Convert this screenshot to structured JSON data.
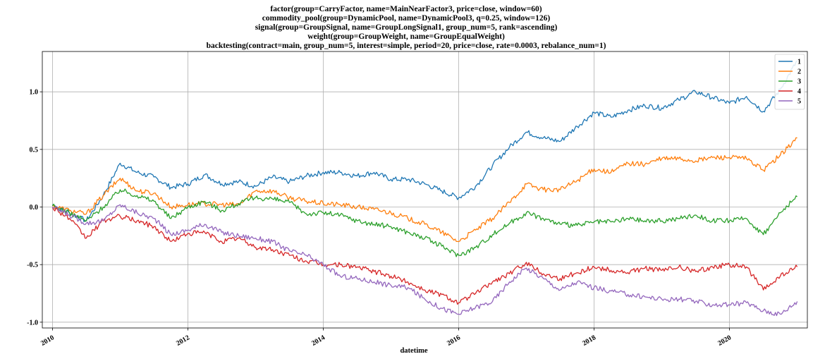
{
  "chart_data": {
    "type": "line",
    "title_lines": [
      "factor(group=CarryFactor, name=MainNearFactor3, price=close, window=60)",
      "commodity_pool(group=DynamicPool, name=DynamicPool3, q=0.25, window=126)",
      "signal(group=GroupSignal, name=GroupLongSignal1, group_num=5, rank=ascending)",
      "weight(group=GroupWeight, name=GroupEqualWeight)",
      "backtesting(contract=main, group_num=5, interest=simple, period=20, price=close, rate=0.0003, rebalance_num=1)"
    ],
    "xlabel": "datetime",
    "ylabel": "",
    "xlim": [
      2009.85,
      2021.15
    ],
    "ylim": [
      -1.05,
      1.35
    ],
    "x_ticks": [
      2010,
      2012,
      2014,
      2016,
      2018,
      2020
    ],
    "x_tick_labels": [
      "2010",
      "2012",
      "2014",
      "2016",
      "2018",
      "2020"
    ],
    "y_ticks": [
      -1.0,
      -0.5,
      0.0,
      0.5,
      1.0
    ],
    "y_tick_labels": [
      "-1.0",
      "-0.5",
      "0.0",
      "0.5",
      "1.0"
    ],
    "grid": true,
    "legend_position": "top-right",
    "series": [
      {
        "name": "1",
        "color": "#1f77b4",
        "points": [
          [
            2010.0,
            0.02
          ],
          [
            2010.25,
            -0.05
          ],
          [
            2010.5,
            -0.12
          ],
          [
            2010.75,
            0.1
          ],
          [
            2011.0,
            0.38
          ],
          [
            2011.25,
            0.3
          ],
          [
            2011.5,
            0.26
          ],
          [
            2011.75,
            0.17
          ],
          [
            2012.0,
            0.2
          ],
          [
            2012.25,
            0.28
          ],
          [
            2012.5,
            0.2
          ],
          [
            2012.75,
            0.22
          ],
          [
            2013.0,
            0.18
          ],
          [
            2013.25,
            0.26
          ],
          [
            2013.5,
            0.22
          ],
          [
            2013.75,
            0.27
          ],
          [
            2014.0,
            0.3
          ],
          [
            2014.25,
            0.3
          ],
          [
            2014.5,
            0.27
          ],
          [
            2014.75,
            0.3
          ],
          [
            2015.0,
            0.24
          ],
          [
            2015.25,
            0.24
          ],
          [
            2015.5,
            0.2
          ],
          [
            2015.75,
            0.14
          ],
          [
            2016.0,
            0.08
          ],
          [
            2016.25,
            0.18
          ],
          [
            2016.5,
            0.36
          ],
          [
            2016.75,
            0.52
          ],
          [
            2017.0,
            0.65
          ],
          [
            2017.25,
            0.6
          ],
          [
            2017.5,
            0.57
          ],
          [
            2017.75,
            0.7
          ],
          [
            2018.0,
            0.82
          ],
          [
            2018.25,
            0.78
          ],
          [
            2018.5,
            0.84
          ],
          [
            2018.75,
            0.88
          ],
          [
            2019.0,
            0.86
          ],
          [
            2019.25,
            0.93
          ],
          [
            2019.5,
            1.0
          ],
          [
            2019.75,
            0.95
          ],
          [
            2020.0,
            0.9
          ],
          [
            2020.25,
            0.96
          ],
          [
            2020.5,
            0.83
          ],
          [
            2020.75,
            1.02
          ],
          [
            2021.0,
            1.27
          ]
        ]
      },
      {
        "name": "2",
        "color": "#ff7f0e",
        "points": [
          [
            2010.0,
            0.01
          ],
          [
            2010.25,
            -0.03
          ],
          [
            2010.5,
            -0.06
          ],
          [
            2010.75,
            0.1
          ],
          [
            2011.0,
            0.25
          ],
          [
            2011.25,
            0.14
          ],
          [
            2011.5,
            0.12
          ],
          [
            2011.75,
            0.0
          ],
          [
            2012.0,
            0.02
          ],
          [
            2012.25,
            0.03
          ],
          [
            2012.5,
            0.02
          ],
          [
            2012.75,
            0.02
          ],
          [
            2013.0,
            0.14
          ],
          [
            2013.25,
            0.14
          ],
          [
            2013.5,
            0.08
          ],
          [
            2013.75,
            0.05
          ],
          [
            2014.0,
            0.03
          ],
          [
            2014.25,
            0.02
          ],
          [
            2014.5,
            0.0
          ],
          [
            2014.75,
            -0.02
          ],
          [
            2015.0,
            -0.05
          ],
          [
            2015.25,
            -0.1
          ],
          [
            2015.5,
            -0.15
          ],
          [
            2015.75,
            -0.22
          ],
          [
            2016.0,
            -0.3
          ],
          [
            2016.25,
            -0.2
          ],
          [
            2016.5,
            -0.1
          ],
          [
            2016.75,
            0.04
          ],
          [
            2017.0,
            0.2
          ],
          [
            2017.25,
            0.15
          ],
          [
            2017.5,
            0.15
          ],
          [
            2017.75,
            0.23
          ],
          [
            2018.0,
            0.33
          ],
          [
            2018.25,
            0.3
          ],
          [
            2018.5,
            0.38
          ],
          [
            2018.75,
            0.37
          ],
          [
            2019.0,
            0.42
          ],
          [
            2019.25,
            0.42
          ],
          [
            2019.5,
            0.4
          ],
          [
            2019.75,
            0.43
          ],
          [
            2020.0,
            0.43
          ],
          [
            2020.25,
            0.42
          ],
          [
            2020.5,
            0.32
          ],
          [
            2020.75,
            0.45
          ],
          [
            2021.0,
            0.6
          ]
        ]
      },
      {
        "name": "3",
        "color": "#2ca02c",
        "points": [
          [
            2010.0,
            0.01
          ],
          [
            2010.25,
            -0.05
          ],
          [
            2010.5,
            -0.12
          ],
          [
            2010.75,
            0.0
          ],
          [
            2011.0,
            0.15
          ],
          [
            2011.25,
            0.1
          ],
          [
            2011.5,
            0.05
          ],
          [
            2011.75,
            -0.1
          ],
          [
            2012.0,
            0.0
          ],
          [
            2012.25,
            0.05
          ],
          [
            2012.5,
            -0.03
          ],
          [
            2012.75,
            0.03
          ],
          [
            2013.0,
            0.08
          ],
          [
            2013.25,
            0.07
          ],
          [
            2013.5,
            0.04
          ],
          [
            2013.75,
            -0.06
          ],
          [
            2014.0,
            -0.05
          ],
          [
            2014.25,
            -0.07
          ],
          [
            2014.5,
            -0.12
          ],
          [
            2014.75,
            -0.15
          ],
          [
            2015.0,
            -0.17
          ],
          [
            2015.25,
            -0.22
          ],
          [
            2015.5,
            -0.27
          ],
          [
            2015.75,
            -0.34
          ],
          [
            2016.0,
            -0.42
          ],
          [
            2016.25,
            -0.35
          ],
          [
            2016.5,
            -0.24
          ],
          [
            2016.75,
            -0.14
          ],
          [
            2017.0,
            -0.05
          ],
          [
            2017.25,
            -0.1
          ],
          [
            2017.5,
            -0.15
          ],
          [
            2017.75,
            -0.16
          ],
          [
            2018.0,
            -0.13
          ],
          [
            2018.25,
            -0.13
          ],
          [
            2018.5,
            -0.1
          ],
          [
            2018.75,
            -0.12
          ],
          [
            2019.0,
            -0.12
          ],
          [
            2019.25,
            -0.1
          ],
          [
            2019.5,
            -0.07
          ],
          [
            2019.75,
            -0.12
          ],
          [
            2020.0,
            -0.12
          ],
          [
            2020.25,
            -0.1
          ],
          [
            2020.5,
            -0.24
          ],
          [
            2020.75,
            -0.05
          ],
          [
            2021.0,
            0.09
          ]
        ]
      },
      {
        "name": "4",
        "color": "#d62728",
        "points": [
          [
            2010.0,
            0.0
          ],
          [
            2010.25,
            -0.1
          ],
          [
            2010.5,
            -0.27
          ],
          [
            2010.75,
            -0.12
          ],
          [
            2011.0,
            -0.08
          ],
          [
            2011.25,
            -0.12
          ],
          [
            2011.5,
            -0.17
          ],
          [
            2011.75,
            -0.3
          ],
          [
            2012.0,
            -0.23
          ],
          [
            2012.25,
            -0.22
          ],
          [
            2012.5,
            -0.3
          ],
          [
            2012.75,
            -0.27
          ],
          [
            2013.0,
            -0.35
          ],
          [
            2013.25,
            -0.37
          ],
          [
            2013.5,
            -0.42
          ],
          [
            2013.75,
            -0.47
          ],
          [
            2014.0,
            -0.5
          ],
          [
            2014.25,
            -0.5
          ],
          [
            2014.5,
            -0.52
          ],
          [
            2014.75,
            -0.56
          ],
          [
            2015.0,
            -0.6
          ],
          [
            2015.25,
            -0.65
          ],
          [
            2015.5,
            -0.72
          ],
          [
            2015.75,
            -0.76
          ],
          [
            2016.0,
            -0.83
          ],
          [
            2016.25,
            -0.75
          ],
          [
            2016.5,
            -0.65
          ],
          [
            2016.75,
            -0.58
          ],
          [
            2017.0,
            -0.48
          ],
          [
            2017.25,
            -0.58
          ],
          [
            2017.5,
            -0.62
          ],
          [
            2017.75,
            -0.57
          ],
          [
            2018.0,
            -0.52
          ],
          [
            2018.25,
            -0.55
          ],
          [
            2018.5,
            -0.57
          ],
          [
            2018.75,
            -0.53
          ],
          [
            2019.0,
            -0.55
          ],
          [
            2019.25,
            -0.52
          ],
          [
            2019.5,
            -0.56
          ],
          [
            2019.75,
            -0.52
          ],
          [
            2020.0,
            -0.5
          ],
          [
            2020.25,
            -0.52
          ],
          [
            2020.5,
            -0.72
          ],
          [
            2020.75,
            -0.6
          ],
          [
            2021.0,
            -0.52
          ]
        ]
      },
      {
        "name": "5",
        "color": "#9467bd",
        "points": [
          [
            2010.0,
            0.0
          ],
          [
            2010.25,
            -0.07
          ],
          [
            2010.5,
            -0.14
          ],
          [
            2010.75,
            -0.12
          ],
          [
            2011.0,
            0.02
          ],
          [
            2011.25,
            -0.05
          ],
          [
            2011.5,
            -0.1
          ],
          [
            2011.75,
            -0.24
          ],
          [
            2012.0,
            -0.2
          ],
          [
            2012.25,
            -0.15
          ],
          [
            2012.5,
            -0.22
          ],
          [
            2012.75,
            -0.25
          ],
          [
            2013.0,
            -0.27
          ],
          [
            2013.25,
            -0.3
          ],
          [
            2013.5,
            -0.38
          ],
          [
            2013.75,
            -0.42
          ],
          [
            2014.0,
            -0.5
          ],
          [
            2014.25,
            -0.6
          ],
          [
            2014.5,
            -0.62
          ],
          [
            2014.75,
            -0.65
          ],
          [
            2015.0,
            -0.68
          ],
          [
            2015.25,
            -0.7
          ],
          [
            2015.5,
            -0.8
          ],
          [
            2015.75,
            -0.88
          ],
          [
            2016.0,
            -0.93
          ],
          [
            2016.25,
            -0.87
          ],
          [
            2016.5,
            -0.82
          ],
          [
            2016.75,
            -0.65
          ],
          [
            2017.0,
            -0.53
          ],
          [
            2017.25,
            -0.62
          ],
          [
            2017.5,
            -0.72
          ],
          [
            2017.75,
            -0.65
          ],
          [
            2018.0,
            -0.7
          ],
          [
            2018.25,
            -0.73
          ],
          [
            2018.5,
            -0.76
          ],
          [
            2018.75,
            -0.78
          ],
          [
            2019.0,
            -0.8
          ],
          [
            2019.25,
            -0.8
          ],
          [
            2019.5,
            -0.82
          ],
          [
            2019.75,
            -0.85
          ],
          [
            2020.0,
            -0.85
          ],
          [
            2020.25,
            -0.83
          ],
          [
            2020.5,
            -0.9
          ],
          [
            2020.75,
            -0.93
          ],
          [
            2021.0,
            -0.82
          ]
        ]
      }
    ]
  }
}
